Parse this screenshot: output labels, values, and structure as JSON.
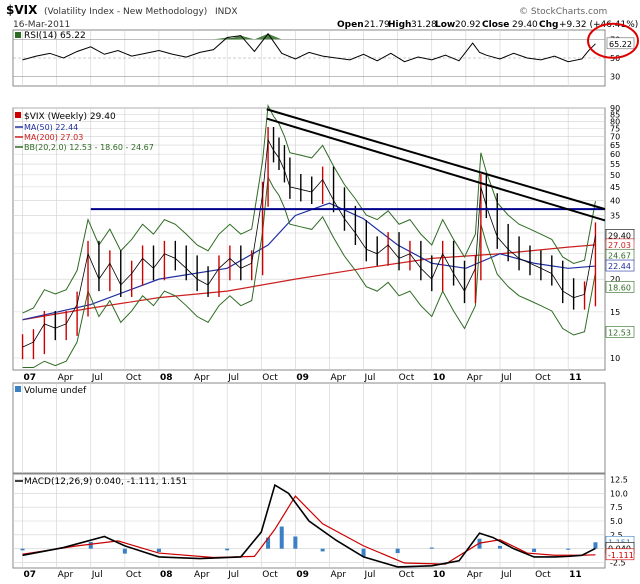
{
  "header": {
    "symbol": "$VIX",
    "description": "(Volatility Index - New Methodology)",
    "exchange": "INDX",
    "date": "16-Mar-2011",
    "open_label": "Open",
    "open": "21.79",
    "high_label": "High",
    "high": "31.28",
    "low_label": "Low",
    "low": "20.92",
    "close_label": "Close",
    "close": "29.40",
    "chg_label": "Chg",
    "chg": "+9.32 (+46.41%)",
    "watermark": "© StockCharts.com"
  },
  "colors": {
    "background": "#ffffff",
    "grid": "#d0d0d0",
    "axis": "#666666",
    "price_up": "#000000",
    "price_down": "#cc0000",
    "ma50": "#1f2fa0",
    "ma200": "#cc2020",
    "bollinger": "#2e6b23",
    "trend_line": "#000000",
    "horizontal_line": "#00008b",
    "rsi_fill": "#2e6b23",
    "macd_line": "#000000",
    "macd_signal": "#cc0000",
    "histogram": "#3b7fc4",
    "annotation_circle": "#dd0000"
  },
  "chart_data": [
    {
      "type": "line",
      "panel": "rsi",
      "legend": [
        "RSI(14) 65.22"
      ],
      "y_ticks": [
        "70",
        "50",
        "30"
      ],
      "ylim": [
        20,
        80
      ],
      "reference_lines": [
        70,
        50,
        30
      ],
      "current_value_label": "65.22",
      "annotation": "red circle around current RSI value",
      "x_axis": {
        "tick_labels": [
          "07",
          "Apr",
          "Jul",
          "Oct",
          "08",
          "Apr",
          "Jul",
          "Oct",
          "09",
          "Apr",
          "Jul",
          "Oct",
          "10",
          "Apr",
          "Jul",
          "Oct",
          "11"
        ],
        "tick_dates": [
          2007.0,
          2007.25,
          2007.5,
          2007.75,
          2008.0,
          2008.25,
          2008.5,
          2008.75,
          2009.0,
          2009.25,
          2009.5,
          2009.75,
          2010.0,
          2010.25,
          2010.5,
          2010.75,
          2011.0
        ]
      },
      "series": [
        {
          "x": [
            2007.0,
            2007.1,
            2007.2,
            2007.3,
            2007.4,
            2007.5,
            2007.6,
            2007.7,
            2007.8,
            2007.9,
            2008.0,
            2008.1,
            2008.2,
            2008.3,
            2008.4,
            2008.5,
            2008.6,
            2008.7,
            2008.8,
            2008.9,
            2009.0,
            2009.1,
            2009.2,
            2009.3,
            2009.4,
            2009.5,
            2009.6,
            2009.7,
            2009.8,
            2009.9,
            2010.0,
            2010.1,
            2010.2,
            2010.3,
            2010.35,
            2010.4,
            2010.5,
            2010.6,
            2010.7,
            2010.8,
            2010.9,
            2011.0,
            2011.1,
            2011.15,
            2011.2
          ],
          "values": [
            48,
            52,
            55,
            50,
            57,
            62,
            54,
            58,
            52,
            55,
            58,
            54,
            51,
            56,
            59,
            72,
            74,
            57,
            76,
            55,
            49,
            56,
            52,
            50,
            48,
            54,
            47,
            55,
            46,
            51,
            48,
            53,
            47,
            66,
            56,
            53,
            49,
            55,
            50,
            48,
            52,
            46,
            49,
            58,
            65.22
          ]
        }
      ]
    },
    {
      "type": "line",
      "panel": "price",
      "scale": "log",
      "legend": [
        "$VIX (Weekly) 29.40",
        "MA(50) 22.44",
        "MA(200) 27.03",
        "BB(20,2.0) 12.53 - 18.60 - 24.67"
      ],
      "y_ticks": [
        "90",
        "85",
        "80",
        "75",
        "70",
        "65",
        "60",
        "55",
        "50",
        "45",
        "40",
        "35",
        "30",
        "25",
        "20",
        "15",
        "10"
      ],
      "ylim": [
        9,
        90
      ],
      "right_value_labels": [
        "29.40",
        "27.03",
        "24.67",
        "22.44",
        "18.60",
        "12.53"
      ],
      "horizontal_line": 37,
      "trend_lines": [
        {
          "x": [
            2008.79,
            2011.27
          ],
          "y": [
            89,
            37
          ]
        },
        {
          "x": [
            2008.79,
            2011.27
          ],
          "y": [
            82,
            33.5
          ]
        }
      ],
      "x_axis": {
        "tick_labels": [
          "07",
          "Apr",
          "Jul",
          "Oct",
          "08",
          "Apr",
          "Jul",
          "Oct",
          "09",
          "Apr",
          "Jul",
          "Oct",
          "10",
          "Apr",
          "Jul",
          "Oct",
          "11"
        ],
        "tick_dates": [
          2007.0,
          2007.25,
          2007.5,
          2007.75,
          2008.0,
          2008.25,
          2008.5,
          2008.75,
          2009.0,
          2009.25,
          2009.5,
          2009.75,
          2010.0,
          2010.25,
          2010.5,
          2010.75,
          2011.0
        ]
      },
      "series": [
        {
          "name": "$VIX (Weekly)",
          "x": [
            2007.0,
            2007.08,
            2007.16,
            2007.24,
            2007.32,
            2007.4,
            2007.48,
            2007.56,
            2007.64,
            2007.72,
            2007.8,
            2007.88,
            2007.96,
            2008.04,
            2008.12,
            2008.2,
            2008.28,
            2008.36,
            2008.44,
            2008.52,
            2008.6,
            2008.68,
            2008.76,
            2008.8,
            2008.84,
            2008.88,
            2008.92,
            2008.96,
            2009.04,
            2009.12,
            2009.2,
            2009.28,
            2009.36,
            2009.44,
            2009.52,
            2009.6,
            2009.68,
            2009.76,
            2009.84,
            2009.92,
            2010.0,
            2010.08,
            2010.16,
            2010.24,
            2010.32,
            2010.36,
            2010.4,
            2010.48,
            2010.56,
            2010.64,
            2010.72,
            2010.8,
            2010.88,
            2010.96,
            2011.04,
            2011.12,
            2011.2
          ],
          "values": [
            11,
            11.5,
            13.5,
            13,
            13.5,
            16,
            25,
            20,
            23,
            19,
            21,
            24,
            22,
            25,
            24,
            22,
            20,
            19,
            22,
            24,
            22,
            23,
            42,
            68,
            62,
            58,
            52,
            45,
            44,
            43,
            48,
            40,
            34,
            30,
            26,
            25,
            27,
            24,
            25,
            22,
            20,
            25,
            21,
            18,
            22,
            45,
            38,
            29,
            26,
            24,
            23,
            22,
            21,
            18,
            17,
            17.5,
            29.4
          ]
        },
        {
          "name": "MA(50)",
          "x": [
            2007.0,
            2007.5,
            2008.0,
            2008.5,
            2008.8,
            2009.0,
            2009.25,
            2009.5,
            2009.75,
            2010.0,
            2010.25,
            2010.5,
            2010.75,
            2011.0,
            2011.2
          ],
          "values": [
            14,
            16,
            20,
            22,
            27,
            35,
            39,
            34,
            27,
            23,
            22,
            25,
            23,
            22,
            22.44
          ]
        },
        {
          "name": "MA(200)",
          "x": [
            2007.0,
            2007.5,
            2008.0,
            2008.5,
            2009.0,
            2009.5,
            2010.0,
            2010.5,
            2011.0,
            2011.2
          ],
          "values": [
            14,
            15.5,
            17,
            18,
            20,
            22,
            24,
            25,
            26.5,
            27.03
          ]
        }
      ]
    },
    {
      "type": "bar",
      "panel": "volume",
      "legend": [
        "Volume undef"
      ],
      "series": []
    },
    {
      "type": "line",
      "panel": "macd",
      "legend": [
        "MACD(12,26,9) 0.040, -1.111, 1.151"
      ],
      "y_ticks": [
        "12.5",
        "10.0",
        "7.5",
        "5.0",
        "2.5",
        "0.0",
        "-2.5"
      ],
      "ylim": [
        -3.5,
        13.5
      ],
      "right_value_labels": [
        "1.151",
        "0.040",
        "-1.111"
      ],
      "x_axis": {
        "tick_labels": [
          "07",
          "Apr",
          "Jul",
          "Oct",
          "08",
          "Apr",
          "Jul",
          "Oct",
          "09",
          "Apr",
          "Jul",
          "Oct",
          "10",
          "Apr",
          "Jul",
          "Oct",
          "11"
        ],
        "tick_dates": [
          2007.0,
          2007.25,
          2007.5,
          2007.75,
          2008.0,
          2008.25,
          2008.5,
          2008.75,
          2009.0,
          2009.25,
          2009.5,
          2009.75,
          2010.0,
          2010.25,
          2010.5,
          2010.75,
          2011.0
        ]
      },
      "series": [
        {
          "name": "MACD",
          "x": [
            2007.0,
            2007.3,
            2007.6,
            2007.75,
            2008.0,
            2008.3,
            2008.6,
            2008.75,
            2008.85,
            2008.95,
            2009.1,
            2009.3,
            2009.5,
            2009.75,
            2010.0,
            2010.2,
            2010.35,
            2010.45,
            2010.6,
            2010.75,
            2010.9,
            2011.0,
            2011.1,
            2011.2
          ],
          "values": [
            -1.2,
            0.2,
            2.2,
            0.5,
            -1.5,
            -1.8,
            -1.5,
            3,
            11.5,
            10,
            5,
            1.5,
            -1.5,
            -3.3,
            -3.1,
            -2.2,
            2.8,
            2,
            0,
            -1.5,
            -1.5,
            -1.4,
            -1.2,
            0.04
          ]
        },
        {
          "name": "Signal",
          "x": [
            2007.0,
            2007.4,
            2007.7,
            2008.0,
            2008.4,
            2008.7,
            2008.85,
            2009.0,
            2009.2,
            2009.5,
            2009.8,
            2010.1,
            2010.35,
            2010.5,
            2010.7,
            2010.9,
            2011.1,
            2011.2
          ],
          "values": [
            -1,
            0.5,
            1.4,
            -0.8,
            -1.6,
            -1.4,
            3.5,
            9.5,
            4.5,
            0.5,
            -2.6,
            -2.8,
            1,
            1.6,
            -0.8,
            -1.2,
            -1.2,
            -1.111
          ]
        },
        {
          "name": "Histogram",
          "x": [
            2007.0,
            2007.5,
            2007.75,
            2008.0,
            2008.5,
            2008.8,
            2008.9,
            2009.0,
            2009.2,
            2009.5,
            2009.75,
            2010.0,
            2010.35,
            2010.5,
            2010.75,
            2011.0,
            2011.2
          ],
          "values": [
            -0.3,
            1.2,
            -0.9,
            -0.6,
            -0.3,
            2,
            4,
            2.2,
            -0.5,
            -1.4,
            -0.8,
            0.2,
            1.8,
            0.5,
            -0.6,
            -0.2,
            1.151
          ]
        }
      ]
    }
  ]
}
